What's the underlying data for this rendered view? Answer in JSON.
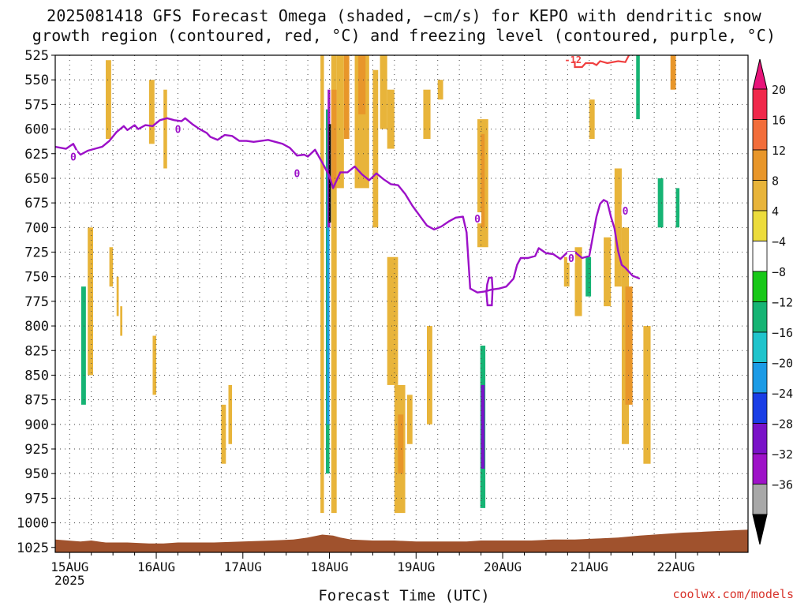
{
  "title": {
    "line1": "2025081418 GFS Forecast Omega (shaded, −cm/s) for KEPO with dendritic snow",
    "line2": "growth region (contoured, red, °C) and freezing level (contoured, purple, °C)"
  },
  "credit": "coolwx.com/models",
  "chart_data": {
    "type": "heatmap",
    "title": "2025081418 GFS Forecast Omega (shaded, −cm/s) for KEPO with dendritic snow growth region (contoured, red, °C) and freezing level (contoured, purple, °C)",
    "xlabel": "Forecast Time (UTC)",
    "ylabel": "",
    "x_unit": "hours after 15AUG 00Z",
    "xlim": [
      -4,
      188
    ],
    "ylim": [
      1030,
      525
    ],
    "y_ticks": [
      525,
      550,
      575,
      600,
      625,
      650,
      675,
      700,
      725,
      750,
      775,
      800,
      825,
      850,
      875,
      900,
      925,
      950,
      975,
      1000,
      1025
    ],
    "x_ticks": [
      {
        "hour": 0,
        "label": "15AUG",
        "sub": "2025"
      },
      {
        "hour": 24,
        "label": "16AUG",
        "sub": ""
      },
      {
        "hour": 48,
        "label": "17AUG",
        "sub": ""
      },
      {
        "hour": 72,
        "label": "18AUG",
        "sub": ""
      },
      {
        "hour": 96,
        "label": "19AUG",
        "sub": ""
      },
      {
        "hour": 120,
        "label": "20AUG",
        "sub": ""
      },
      {
        "hour": 144,
        "label": "21AUG",
        "sub": ""
      },
      {
        "hour": 168,
        "label": "22AUG",
        "sub": ""
      }
    ],
    "grid": true,
    "colorbar": {
      "levels": [
        20,
        16,
        12,
        8,
        4,
        -4,
        -8,
        -12,
        -16,
        -20,
        -24,
        -28,
        -32,
        -36
      ],
      "colors": [
        "#f0284a",
        "#f26d3a",
        "#e8962a",
        "#e8b43a",
        "#ecdc3c",
        "#ffffff",
        "#18c818",
        "#16b474",
        "#20c4cc",
        "#1c9be6",
        "#1a3ee6",
        "#7a12c8",
        "#9e12c8",
        "#a8a8a8"
      ],
      "top_color": "#e8147a",
      "bottom_color": "#000000"
    },
    "omega_cells": [
      {
        "t0": -3.8,
        "t1": -2.8,
        "p0": 570,
        "p1": 900,
        "v": -6
      },
      {
        "t0": -3.0,
        "t1": -2.4,
        "p0": 900,
        "p1": 1000,
        "v": -6
      },
      {
        "t0": 2.5,
        "t1": 5.5,
        "p0": 700,
        "p1": 930,
        "v": -6
      },
      {
        "t0": 3.2,
        "t1": 4.5,
        "p0": 760,
        "p1": 880,
        "v": -14
      },
      {
        "t0": 5.0,
        "t1": 6.5,
        "p0": 700,
        "p1": 850,
        "v": 5
      },
      {
        "t0": 8.0,
        "t1": 9.0,
        "p0": 540,
        "p1": 570,
        "v": -6
      },
      {
        "t0": 10,
        "t1": 11.5,
        "p0": 530,
        "p1": 610,
        "v": 5
      },
      {
        "t0": 11,
        "t1": 12,
        "p0": 720,
        "p1": 760,
        "v": 5
      },
      {
        "t0": 13,
        "t1": 13.6,
        "p0": 750,
        "p1": 790,
        "v": 5
      },
      {
        "t0": 14,
        "t1": 14.6,
        "p0": 780,
        "p1": 810,
        "v": 5
      },
      {
        "t0": 22,
        "t1": 23.5,
        "p0": 550,
        "p1": 615,
        "v": 5
      },
      {
        "t0": 26,
        "t1": 27,
        "p0": 560,
        "p1": 640,
        "v": 5
      },
      {
        "t0": 23,
        "t1": 24,
        "p0": 810,
        "p1": 870,
        "v": 5
      },
      {
        "t0": 24,
        "t1": 25,
        "p0": 875,
        "p1": 960,
        "v": -6
      },
      {
        "t0": 42,
        "t1": 43.3,
        "p0": 880,
        "p1": 940,
        "v": 5
      },
      {
        "t0": 44,
        "t1": 45,
        "p0": 860,
        "p1": 920,
        "v": 5
      },
      {
        "t0": 51,
        "t1": 51.7,
        "p0": 810,
        "p1": 830,
        "v": -6
      },
      {
        "t0": 65,
        "t1": 66,
        "p0": 800,
        "p1": 880,
        "v": -6
      },
      {
        "t0": 67,
        "t1": 68.5,
        "p0": 770,
        "p1": 910,
        "v": -6
      },
      {
        "t0": 69.5,
        "t1": 70.5,
        "p0": 525,
        "p1": 990,
        "v": 5
      },
      {
        "t0": 70.5,
        "t1": 72.5,
        "p0": 525,
        "p1": 990,
        "v": -6
      },
      {
        "t0": 71,
        "t1": 72,
        "p0": 580,
        "p1": 950,
        "v": -14
      },
      {
        "t0": 71.3,
        "t1": 72,
        "p0": 640,
        "p1": 900,
        "v": -22
      },
      {
        "t0": 71.5,
        "t1": 72.2,
        "p0": 560,
        "p1": 700,
        "v": -34
      },
      {
        "t0": 71.8,
        "t1": 72.4,
        "p0": 595,
        "p1": 695,
        "v": -40
      },
      {
        "t0": 72.5,
        "t1": 74,
        "p0": 525,
        "p1": 990,
        "v": 5
      },
      {
        "t0": 74,
        "t1": 76,
        "p0": 525,
        "p1": 660,
        "v": 5
      },
      {
        "t0": 72.5,
        "t1": 74,
        "p0": 560,
        "p1": 660,
        "v": 10
      },
      {
        "t0": 76,
        "t1": 77.5,
        "p0": 525,
        "p1": 610,
        "v": 10
      },
      {
        "t0": 79,
        "t1": 83,
        "p0": 525,
        "p1": 660,
        "v": 5
      },
      {
        "t0": 80,
        "t1": 82,
        "p0": 525,
        "p1": 585,
        "v": 10
      },
      {
        "t0": 84,
        "t1": 85.5,
        "p0": 540,
        "p1": 700,
        "v": 5
      },
      {
        "t0": 86,
        "t1": 88,
        "p0": 525,
        "p1": 600,
        "v": 5
      },
      {
        "t0": 88,
        "t1": 90,
        "p0": 560,
        "p1": 620,
        "v": 5
      },
      {
        "t0": 88,
        "t1": 91,
        "p0": 730,
        "p1": 860,
        "v": 5
      },
      {
        "t0": 90,
        "t1": 93,
        "p0": 860,
        "p1": 990,
        "v": 5
      },
      {
        "t0": 91,
        "t1": 92.5,
        "p0": 890,
        "p1": 950,
        "v": 10
      },
      {
        "t0": 93.5,
        "t1": 95,
        "p0": 870,
        "p1": 920,
        "v": 5
      },
      {
        "t0": 98,
        "t1": 100,
        "p0": 560,
        "p1": 610,
        "v": 5
      },
      {
        "t0": 99,
        "t1": 100.5,
        "p0": 800,
        "p1": 900,
        "v": 5
      },
      {
        "t0": 102,
        "t1": 103.5,
        "p0": 550,
        "p1": 570,
        "v": 5
      },
      {
        "t0": 113,
        "t1": 116,
        "p0": 590,
        "p1": 720,
        "v": 5
      },
      {
        "t0": 114,
        "t1": 115,
        "p0": 605,
        "p1": 700,
        "v": 10
      },
      {
        "t0": 113,
        "t1": 115.8,
        "p0": 525,
        "p1": 545,
        "v": -6
      },
      {
        "t0": 113.5,
        "t1": 115.5,
        "p0": 785,
        "p1": 1005,
        "v": -6
      },
      {
        "t0": 113.8,
        "t1": 115.2,
        "p0": 820,
        "p1": 985,
        "v": -14
      },
      {
        "t0": 114,
        "t1": 115,
        "p0": 860,
        "p1": 945,
        "v": -28
      },
      {
        "t0": 129.5,
        "t1": 131.5,
        "p0": 870,
        "p1": 900,
        "v": -6
      },
      {
        "t0": 137,
        "t1": 138.5,
        "p0": 730,
        "p1": 760,
        "v": 5
      },
      {
        "t0": 140,
        "t1": 142,
        "p0": 720,
        "p1": 790,
        "v": 5
      },
      {
        "t0": 142,
        "t1": 144,
        "p0": 725,
        "p1": 800,
        "v": -6
      },
      {
        "t0": 143,
        "t1": 144.5,
        "p0": 730,
        "p1": 770,
        "v": -14
      },
      {
        "t0": 144,
        "t1": 145.5,
        "p0": 570,
        "p1": 610,
        "v": 5
      },
      {
        "t0": 146,
        "t1": 148,
        "p0": 620,
        "p1": 860,
        "v": -6
      },
      {
        "t0": 148,
        "t1": 150,
        "p0": 710,
        "p1": 780,
        "v": 5
      },
      {
        "t0": 151,
        "t1": 153,
        "p0": 640,
        "p1": 760,
        "v": 5
      },
      {
        "t0": 153,
        "t1": 155,
        "p0": 700,
        "p1": 920,
        "v": 5
      },
      {
        "t0": 154,
        "t1": 156,
        "p0": 760,
        "p1": 880,
        "v": 10
      },
      {
        "t0": 156,
        "t1": 158,
        "p0": 525,
        "p1": 700,
        "v": -6
      },
      {
        "t0": 157,
        "t1": 158,
        "p0": 525,
        "p1": 590,
        "v": -14
      },
      {
        "t0": 159,
        "t1": 161,
        "p0": 800,
        "p1": 940,
        "v": 5
      },
      {
        "t0": 160,
        "t1": 162,
        "p0": 525,
        "p1": 560,
        "v": -6
      },
      {
        "t0": 162,
        "t1": 164,
        "p0": 540,
        "p1": 680,
        "v": -6
      },
      {
        "t0": 163,
        "t1": 164.5,
        "p0": 650,
        "p1": 700,
        "v": -14
      },
      {
        "t0": 164,
        "t1": 166,
        "p0": 525,
        "p1": 620,
        "v": -6
      },
      {
        "t0": 165,
        "t1": 167,
        "p0": 680,
        "p1": 720,
        "v": -6
      },
      {
        "t0": 166.5,
        "t1": 168,
        "p0": 525,
        "p1": 560,
        "v": 10
      },
      {
        "t0": 167,
        "t1": 169,
        "p0": 640,
        "p1": 750,
        "v": -6
      },
      {
        "t0": 168,
        "t1": 169,
        "p0": 660,
        "p1": 700,
        "v": -14
      },
      {
        "t0": 169,
        "t1": 170.5,
        "p0": 690,
        "p1": 790,
        "v": -6
      }
    ],
    "terrain_top_hpa": [
      [
        -4,
        1017
      ],
      [
        3,
        1019
      ],
      [
        6,
        1018
      ],
      [
        10,
        1020
      ],
      [
        16,
        1020
      ],
      [
        22,
        1021
      ],
      [
        26,
        1021
      ],
      [
        30,
        1020
      ],
      [
        40,
        1020
      ],
      [
        48,
        1019
      ],
      [
        56,
        1018
      ],
      [
        62,
        1017
      ],
      [
        66,
        1015
      ],
      [
        70,
        1012
      ],
      [
        73,
        1013
      ],
      [
        75,
        1015
      ],
      [
        78,
        1017
      ],
      [
        84,
        1018
      ],
      [
        90,
        1018
      ],
      [
        96,
        1019
      ],
      [
        102,
        1019
      ],
      [
        110,
        1019
      ],
      [
        114,
        1018
      ],
      [
        118,
        1018
      ],
      [
        122,
        1018
      ],
      [
        128,
        1018
      ],
      [
        134,
        1017
      ],
      [
        140,
        1017
      ],
      [
        146,
        1016
      ],
      [
        152,
        1015
      ],
      [
        158,
        1013
      ],
      [
        162,
        1012
      ],
      [
        166,
        1011
      ],
      [
        170,
        1010
      ],
      [
        176,
        1009
      ],
      [
        182,
        1008
      ],
      [
        188,
        1007
      ]
    ],
    "freezing_level": {
      "name": "0",
      "points": [
        [
          -4,
          618
        ],
        [
          -1,
          620
        ],
        [
          1,
          615
        ],
        [
          2,
          622
        ],
        [
          3,
          626
        ],
        [
          5,
          622
        ],
        [
          7,
          620
        ],
        [
          9,
          618
        ],
        [
          11,
          612
        ],
        [
          13,
          603
        ],
        [
          15,
          597
        ],
        [
          16,
          601
        ],
        [
          18,
          596
        ],
        [
          19,
          600
        ],
        [
          21,
          596
        ],
        [
          23,
          597
        ],
        [
          25,
          591
        ],
        [
          27,
          589
        ],
        [
          29,
          591
        ],
        [
          31,
          592
        ],
        [
          32,
          589
        ],
        [
          34,
          595
        ],
        [
          36,
          600
        ],
        [
          38,
          604
        ],
        [
          39,
          608
        ],
        [
          41,
          611
        ],
        [
          43,
          606
        ],
        [
          45,
          607
        ],
        [
          47,
          612
        ],
        [
          49,
          612
        ],
        [
          51,
          613
        ],
        [
          53,
          612
        ],
        [
          55,
          611
        ],
        [
          57,
          613
        ],
        [
          59,
          615
        ],
        [
          61,
          619
        ],
        [
          63,
          627
        ],
        [
          65,
          626
        ],
        [
          66,
          628
        ],
        [
          68,
          621
        ],
        [
          70,
          634
        ],
        [
          72,
          648
        ],
        [
          73,
          660
        ],
        [
          74,
          652
        ],
        [
          75,
          644
        ],
        [
          77,
          644
        ],
        [
          79,
          638
        ],
        [
          81,
          646
        ],
        [
          83,
          652
        ],
        [
          85,
          645
        ],
        [
          87,
          651
        ],
        [
          89,
          656
        ],
        [
          91,
          657
        ],
        [
          93,
          666
        ],
        [
          95,
          678
        ],
        [
          97,
          688
        ],
        [
          99,
          698
        ],
        [
          101,
          702
        ],
        [
          103,
          699
        ],
        [
          105,
          694
        ],
        [
          107,
          690
        ],
        [
          109,
          689
        ],
        [
          110,
          705
        ],
        [
          111,
          762
        ],
        [
          113,
          766
        ],
        [
          115,
          765
        ],
        [
          117,
          763
        ],
        [
          119,
          762
        ],
        [
          121,
          760
        ],
        [
          123,
          752
        ],
        [
          124,
          738
        ],
        [
          125,
          731
        ],
        [
          127,
          731
        ],
        [
          129,
          729
        ],
        [
          130,
          721
        ],
        [
          132,
          726
        ],
        [
          134,
          727
        ],
        [
          136,
          732
        ],
        [
          138,
          725
        ],
        [
          140,
          725
        ],
        [
          142,
          731
        ],
        [
          144,
          729
        ],
        [
          146,
          689
        ],
        [
          147,
          676
        ],
        [
          148,
          672
        ],
        [
          149,
          674
        ],
        [
          150,
          689
        ],
        [
          151,
          701
        ],
        [
          152,
          724
        ],
        [
          153,
          738
        ],
        [
          154,
          741
        ],
        [
          156,
          749
        ],
        [
          158,
          752
        ]
      ],
      "closed": [
        [
          115.7,
          758
        ],
        [
          116.2,
          751
        ],
        [
          117.0,
          751
        ],
        [
          117.2,
          763
        ],
        [
          117.0,
          779
        ],
        [
          115.8,
          779
        ],
        [
          115.5,
          766
        ]
      ],
      "labels": [
        [
          1,
          628
        ],
        [
          30,
          600
        ],
        [
          63,
          645
        ],
        [
          113,
          691
        ],
        [
          139,
          731
        ],
        [
          154,
          683
        ]
      ]
    },
    "dendritic": {
      "name": "-12",
      "points": [
        [
          140,
          531
        ],
        [
          140,
          537
        ],
        [
          142,
          537
        ],
        [
          143,
          533
        ],
        [
          145,
          533
        ],
        [
          146,
          535
        ],
        [
          147,
          531
        ],
        [
          149,
          533
        ],
        [
          152,
          531
        ],
        [
          154,
          532
        ],
        [
          155,
          525
        ]
      ],
      "labels": [
        [
          139.5,
          529
        ]
      ]
    }
  }
}
